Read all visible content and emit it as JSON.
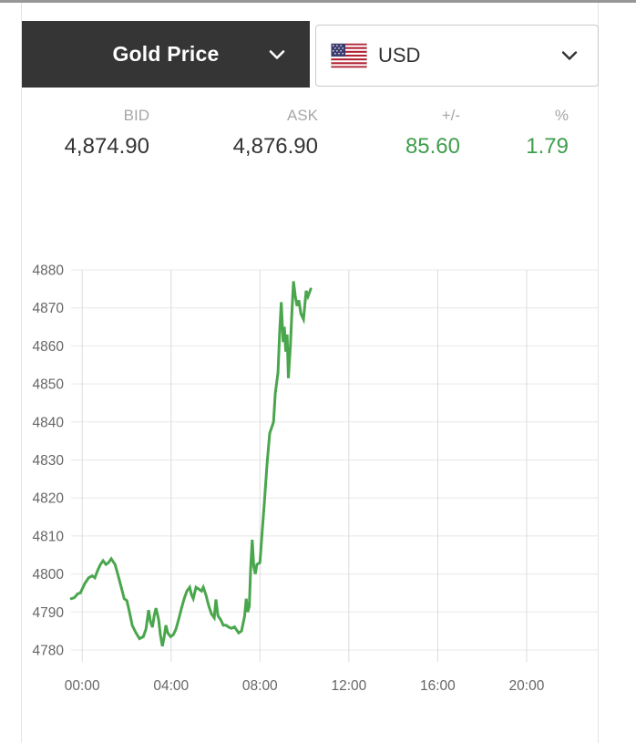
{
  "header": {
    "instrument_selector": {
      "label": "Gold Price"
    },
    "currency_selector": {
      "label": "USD",
      "flag": "united-states"
    }
  },
  "quote": {
    "bid": {
      "label": "BID",
      "value": "4,874.90"
    },
    "ask": {
      "label": "ASK",
      "value": "4,876.90"
    },
    "change": {
      "label": "+/-",
      "value": "85.60"
    },
    "change_pct": {
      "label": "%",
      "value": "1.79"
    }
  },
  "colors": {
    "accent_green_text": "#3f9e4d",
    "line_green": "#4aa64d",
    "dark_button_bg": "#353535",
    "value_text": "#333333",
    "label_text": "#a6a6a6",
    "axis_text": "#666666",
    "grid_line": "#e8e8e8",
    "grid_line_vertical": "#dcdcdc",
    "flag_red": "#b22234",
    "flag_blue": "#3c3b6e"
  },
  "chart_data": {
    "type": "line",
    "title": "",
    "xlabel": "",
    "ylabel": "",
    "grid": true,
    "legend_position": "none",
    "ylim": [
      4780,
      4880
    ],
    "y_ticks": [
      4880,
      4870,
      4860,
      4850,
      4840,
      4830,
      4820,
      4810,
      4800,
      4790,
      4780
    ],
    "xlim_hours": [
      -0.5,
      23.2
    ],
    "x_ticks": [
      {
        "hours": 0,
        "label": "00:00"
      },
      {
        "hours": 4,
        "label": "04:00"
      },
      {
        "hours": 8,
        "label": "08:00"
      },
      {
        "hours": 12,
        "label": "12:00"
      },
      {
        "hours": 16,
        "label": "16:00"
      },
      {
        "hours": 20,
        "label": "20:00"
      }
    ],
    "series": [
      {
        "name": "Gold Price (USD)",
        "points": [
          [
            -0.49,
            4793.5
          ],
          [
            -0.35,
            4793.8
          ],
          [
            -0.2,
            4794.8
          ],
          [
            -0.08,
            4795
          ],
          [
            0.12,
            4797.5
          ],
          [
            0.29,
            4799
          ],
          [
            0.45,
            4799.5
          ],
          [
            0.57,
            4799
          ],
          [
            0.7,
            4801
          ],
          [
            0.82,
            4802.5
          ],
          [
            0.94,
            4803.5
          ],
          [
            1.07,
            4802.5
          ],
          [
            1.19,
            4803
          ],
          [
            1.31,
            4804
          ],
          [
            1.48,
            4802.5
          ],
          [
            1.6,
            4800
          ],
          [
            1.76,
            4796.5
          ],
          [
            1.89,
            4793.5
          ],
          [
            2.01,
            4793
          ],
          [
            2.13,
            4790
          ],
          [
            2.25,
            4786.5
          ],
          [
            2.42,
            4784.5
          ],
          [
            2.58,
            4783
          ],
          [
            2.75,
            4783.5
          ],
          [
            2.87,
            4785.5
          ],
          [
            2.99,
            4790.5
          ],
          [
            3.07,
            4787.5
          ],
          [
            3.16,
            4786
          ],
          [
            3.24,
            4789
          ],
          [
            3.32,
            4791
          ],
          [
            3.44,
            4788
          ],
          [
            3.52,
            4784
          ],
          [
            3.61,
            4781
          ],
          [
            3.69,
            4783.5
          ],
          [
            3.77,
            4786.5
          ],
          [
            3.85,
            4784.5
          ],
          [
            3.98,
            4783.5
          ],
          [
            4.1,
            4784
          ],
          [
            4.22,
            4785.5
          ],
          [
            4.34,
            4788
          ],
          [
            4.47,
            4791
          ],
          [
            4.59,
            4793.5
          ],
          [
            4.71,
            4795.5
          ],
          [
            4.84,
            4796.5
          ],
          [
            4.92,
            4794.5
          ],
          [
            5.0,
            4793.5
          ],
          [
            5.12,
            4796.5
          ],
          [
            5.25,
            4796
          ],
          [
            5.37,
            4795.5
          ],
          [
            5.45,
            4796.5
          ],
          [
            5.57,
            4794.5
          ],
          [
            5.7,
            4791.5
          ],
          [
            5.82,
            4789.5
          ],
          [
            5.94,
            4788.5
          ],
          [
            6.02,
            4793.3
          ],
          [
            6.11,
            4789
          ],
          [
            6.23,
            4788
          ],
          [
            6.35,
            4786.5
          ],
          [
            6.48,
            4786.5
          ],
          [
            6.6,
            4786
          ],
          [
            6.72,
            4785.7
          ],
          [
            6.85,
            4786.1
          ],
          [
            7.04,
            4784.5
          ],
          [
            7.17,
            4785
          ],
          [
            7.31,
            4789
          ],
          [
            7.38,
            4793.5
          ],
          [
            7.45,
            4790
          ],
          [
            7.52,
            4791.5
          ],
          [
            7.58,
            4801.5
          ],
          [
            7.65,
            4809
          ],
          [
            7.72,
            4802
          ],
          [
            7.79,
            4800
          ],
          [
            7.86,
            4802.5
          ],
          [
            8.0,
            4803
          ],
          [
            8.11,
            4812
          ],
          [
            8.2,
            4819
          ],
          [
            8.32,
            4829
          ],
          [
            8.44,
            4837
          ],
          [
            8.61,
            4840
          ],
          [
            8.69,
            4847.5
          ],
          [
            8.81,
            4853
          ],
          [
            8.89,
            4864
          ],
          [
            8.96,
            4871.5
          ],
          [
            9.04,
            4861
          ],
          [
            9.1,
            4865
          ],
          [
            9.16,
            4858.5
          ],
          [
            9.22,
            4863
          ],
          [
            9.28,
            4851.5
          ],
          [
            9.37,
            4860
          ],
          [
            9.43,
            4868
          ],
          [
            9.51,
            4877
          ],
          [
            9.59,
            4873
          ],
          [
            9.67,
            4870.5
          ],
          [
            9.75,
            4872
          ],
          [
            9.84,
            4868.5
          ],
          [
            9.96,
            4867
          ],
          [
            10.08,
            4874.5
          ],
          [
            10.16,
            4873
          ],
          [
            10.29,
            4875
          ]
        ]
      }
    ]
  }
}
